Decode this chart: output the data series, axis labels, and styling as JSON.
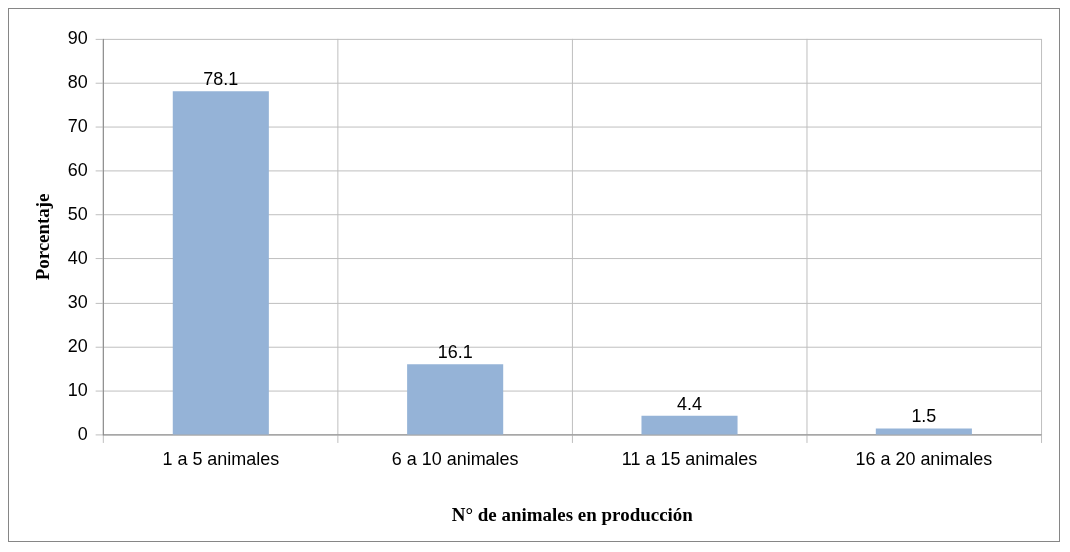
{
  "chart_data": {
    "type": "bar",
    "xlabel": "N° de animales en producción",
    "ylabel": "Porcentaje",
    "categories": [
      "1 a 5 animales",
      "6 a 10 animales",
      "11 a 15 animales",
      "16 a 20 animales"
    ],
    "values": [
      78.1,
      16.1,
      4.4,
      1.5
    ],
    "color": "#95b3d7",
    "ylim": [
      0,
      90
    ],
    "yticks": [
      0,
      10,
      20,
      30,
      40,
      50,
      60,
      70,
      80,
      90
    ],
    "grid": true,
    "legend": false,
    "data_labels": true
  }
}
